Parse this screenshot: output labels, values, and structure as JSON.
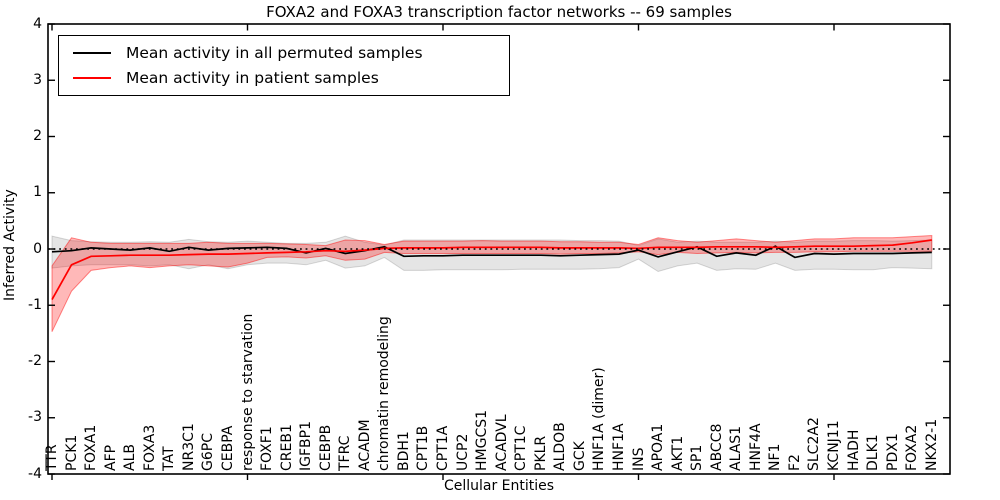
{
  "title": "FOXA2 and FOXA3 transcription factor networks -- 69 samples",
  "legend": {
    "position": "upper left",
    "entries": [
      {
        "label": "Mean activity in all permuted samples",
        "color": "#000000"
      },
      {
        "label": "Mean activity in patient samples",
        "color": "#ff0000"
      }
    ]
  },
  "chart_data": {
    "type": "line",
    "title": "FOXA2 and FOXA3 transcription factor networks -- 69 samples",
    "xlabel": "Cellular Entities",
    "ylabel": "Inferred Activity",
    "ylim": [
      -4,
      4
    ],
    "yticks": [
      -4,
      -3,
      -2,
      -1,
      0,
      1,
      2,
      3,
      4
    ],
    "grid": false,
    "legend_position": "upper left",
    "zero_line": {
      "y": 0,
      "style": "dotted",
      "color": "#000000"
    },
    "categories": [
      "TTR",
      "PCK1",
      "FOXA1",
      "AFP",
      "ALB",
      "FOXA3",
      "TAT",
      "NR3C1",
      "G6PC",
      "CEBPA",
      "response to starvation",
      "FOXF1",
      "CREB1",
      "IGFBP1",
      "CEBPB",
      "TFRC",
      "ACADM",
      "chromatin remodeling",
      "BDH1",
      "CPT1B",
      "CPT1A",
      "UCP2",
      "HMGCS1",
      "ACADVL",
      "CPT1C",
      "PKLR",
      "ALDOB",
      "GCK",
      "HNF1A (dimer)",
      "HNF1A",
      "INS",
      "APOA1",
      "AKT1",
      "SP1",
      "ABCC8",
      "ALAS1",
      "HNF4A",
      "NF1",
      "F2",
      "SLC2A2",
      "KCNJ11",
      "HADH",
      "DLK1",
      "PDX1",
      "FOXA2",
      "NKX2-1"
    ],
    "series": [
      {
        "name": "Mean activity in all permuted samples",
        "color": "#000000",
        "values": [
          -0.05,
          -0.03,
          0.02,
          0.0,
          -0.02,
          0.02,
          -0.04,
          0.03,
          -0.02,
          0.01,
          0.02,
          0.03,
          0.01,
          -0.07,
          0.01,
          -0.08,
          -0.03,
          0.04,
          -0.13,
          -0.12,
          -0.12,
          -0.11,
          -0.11,
          -0.11,
          -0.11,
          -0.11,
          -0.12,
          -0.11,
          -0.1,
          -0.09,
          -0.02,
          -0.14,
          -0.05,
          0.04,
          -0.13,
          -0.07,
          -0.11,
          0.05,
          -0.15,
          -0.08,
          -0.09,
          -0.08,
          -0.08,
          -0.08,
          -0.07,
          -0.06
        ],
        "band": {
          "fill": "rgba(0,0,0,0.10)",
          "edge": "rgba(0,0,0,0.15)",
          "high": [
            0.23,
            0.15,
            0.13,
            0.12,
            0.12,
            0.13,
            0.12,
            0.17,
            0.13,
            0.12,
            0.14,
            0.12,
            0.1,
            0.1,
            0.12,
            0.23,
            0.12,
            0.07,
            0.16,
            0.16,
            0.16,
            0.16,
            0.16,
            0.16,
            0.16,
            0.16,
            0.16,
            0.15,
            0.15,
            0.14,
            0.06,
            0.18,
            0.12,
            0.14,
            0.12,
            0.12,
            0.12,
            0.14,
            0.12,
            0.14,
            0.14,
            0.15,
            0.15,
            0.14,
            0.15,
            0.16
          ],
          "low": [
            -0.34,
            -0.3,
            -0.28,
            -0.28,
            -0.28,
            -0.3,
            -0.28,
            -0.35,
            -0.28,
            -0.35,
            -0.28,
            -0.25,
            -0.25,
            -0.28,
            -0.2,
            -0.34,
            -0.3,
            -0.15,
            -0.38,
            -0.38,
            -0.37,
            -0.37,
            -0.37,
            -0.37,
            -0.36,
            -0.36,
            -0.36,
            -0.36,
            -0.35,
            -0.33,
            -0.18,
            -0.4,
            -0.3,
            -0.25,
            -0.38,
            -0.35,
            -0.36,
            -0.25,
            -0.38,
            -0.36,
            -0.36,
            -0.37,
            -0.37,
            -0.33,
            -0.34,
            -0.35
          ]
        }
      },
      {
        "name": "Mean activity in patient samples",
        "color": "#ff0000",
        "values": [
          -0.9,
          -0.28,
          -0.13,
          -0.12,
          -0.11,
          -0.11,
          -0.11,
          -0.1,
          -0.09,
          -0.09,
          -0.08,
          -0.07,
          -0.06,
          -0.05,
          -0.03,
          -0.04,
          -0.02,
          0.01,
          0.02,
          0.02,
          0.02,
          0.03,
          0.03,
          0.03,
          0.03,
          0.03,
          0.02,
          0.02,
          0.02,
          0.02,
          0.01,
          0.03,
          0.03,
          0.03,
          0.04,
          0.04,
          0.04,
          0.03,
          0.04,
          0.05,
          0.05,
          0.05,
          0.06,
          0.07,
          0.11,
          0.16
        ],
        "band": {
          "fill": "rgba(255,0,0,0.28)",
          "edge": "rgba(255,0,0,0.45)",
          "high": [
            -0.3,
            0.2,
            0.12,
            0.1,
            0.1,
            0.1,
            0.1,
            0.1,
            0.12,
            0.1,
            0.1,
            0.1,
            0.09,
            0.08,
            0.06,
            0.16,
            0.15,
            0.08,
            0.14,
            0.14,
            0.14,
            0.14,
            0.15,
            0.14,
            0.14,
            0.14,
            0.13,
            0.13,
            0.12,
            0.12,
            0.08,
            0.2,
            0.15,
            0.12,
            0.15,
            0.18,
            0.15,
            0.12,
            0.15,
            0.18,
            0.18,
            0.2,
            0.2,
            0.2,
            0.22,
            0.24
          ],
          "low": [
            -1.47,
            -0.75,
            -0.38,
            -0.33,
            -0.3,
            -0.33,
            -0.3,
            -0.28,
            -0.3,
            -0.32,
            -0.25,
            -0.15,
            -0.14,
            -0.16,
            -0.12,
            -0.2,
            -0.18,
            -0.06,
            -0.08,
            -0.08,
            -0.08,
            -0.08,
            -0.08,
            -0.08,
            -0.08,
            -0.08,
            -0.09,
            -0.08,
            -0.08,
            -0.07,
            -0.05,
            -0.1,
            -0.06,
            -0.08,
            -0.07,
            -0.06,
            -0.07,
            -0.06,
            -0.06,
            -0.05,
            -0.05,
            -0.04,
            -0.04,
            -0.04,
            -0.04,
            -0.04
          ]
        }
      }
    ]
  }
}
